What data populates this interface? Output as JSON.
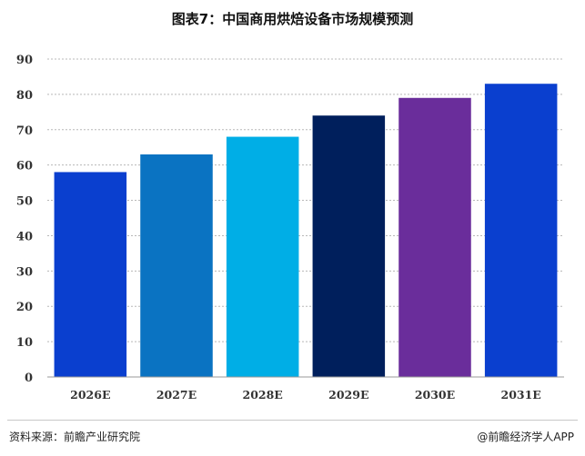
{
  "title": "图表7：中国商用烘焙设备市场规模预测",
  "source": "资料来源：前瞻产业研究院",
  "brand": "@前瞻经济学人APP",
  "chart_data": {
    "type": "bar",
    "categories": [
      "2026E",
      "2027E",
      "2028E",
      "2029E",
      "2030E",
      "2031E"
    ],
    "values": [
      58,
      63,
      68,
      74,
      79,
      83
    ],
    "colors": [
      "#0a3fcf",
      "#0a73c2",
      "#00aee6",
      "#001f5c",
      "#6a2d9b",
      "#0a3fcf"
    ],
    "title": "图表7：中国商用烘焙设备市场规模预测",
    "xlabel": "",
    "ylabel": "",
    "ylim": [
      0,
      90
    ],
    "yticks": [
      0,
      10,
      20,
      30,
      40,
      50,
      60,
      70,
      80,
      90
    ],
    "grid": true,
    "legend": "none"
  }
}
